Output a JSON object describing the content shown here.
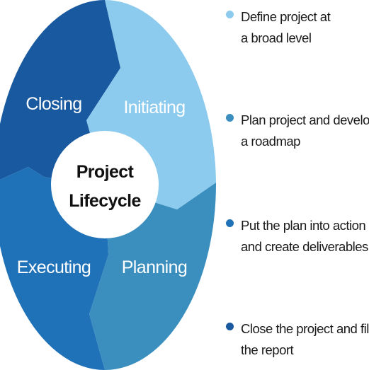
{
  "center": {
    "line1": "Project",
    "line2": "Lifecycle"
  },
  "phases": [
    {
      "id": "initiating",
      "label": "Initiating",
      "color": "#8ccbee"
    },
    {
      "id": "planning",
      "label": "Planning",
      "color": "#3a8fbf"
    },
    {
      "id": "executing",
      "label": "Executing",
      "color": "#1f72b8"
    },
    {
      "id": "closing",
      "label": "Closing",
      "color": "#1859a0"
    }
  ],
  "legend": [
    {
      "line1": "Define project at",
      "line2": "a broad level",
      "color": "#8ccbee"
    },
    {
      "line1": "Plan project and develop",
      "line2": "a roadmap",
      "color": "#3a8fbf"
    },
    {
      "line1": "Put the plan into action",
      "line2": "and create deliverables",
      "color": "#1f72b8"
    },
    {
      "line1": "Close the project and file",
      "line2": "the report",
      "color": "#1859a0"
    }
  ]
}
